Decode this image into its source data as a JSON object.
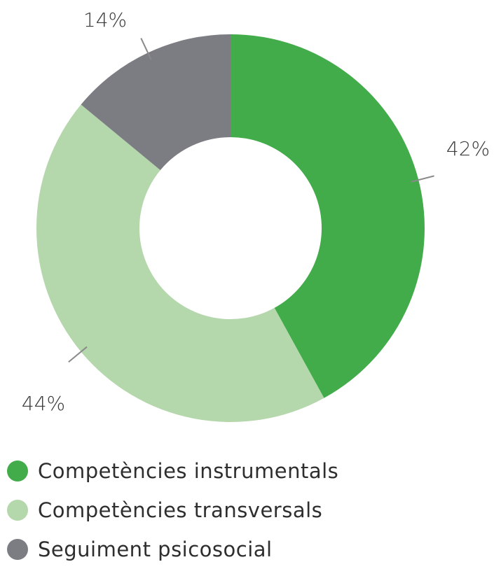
{
  "chart_data": {
    "type": "pie",
    "donut": true,
    "categories": [
      "Competències instrumentals",
      "Competències transversals",
      "Seguiment psicosocial"
    ],
    "values": [
      42,
      44,
      14
    ],
    "labels": [
      "42%",
      "44%",
      "14%"
    ],
    "colors": [
      "#43ac4a",
      "#b5d7ac",
      "#7c7d82"
    ],
    "start_angle_deg": 0,
    "direction": "clockwise",
    "legend": "bottom-left"
  },
  "legend": {
    "items": [
      {
        "label": "Competències instrumentals",
        "color": "#43ac4a",
        "color_icon": "filled-circle"
      },
      {
        "label": "Competències transversals",
        "color": "#b5d7ac",
        "color_icon": "filled-circle"
      },
      {
        "label": "Seguiment psicosocial",
        "color": "#7c7d82",
        "color_icon": "filled-circle"
      }
    ]
  }
}
